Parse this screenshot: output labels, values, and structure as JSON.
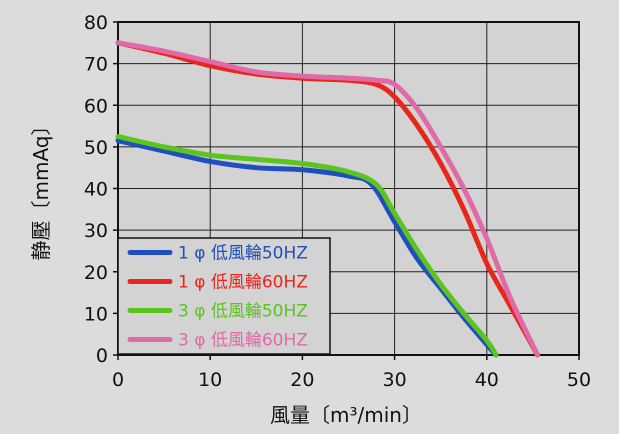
{
  "chart_data": {
    "type": "line",
    "title": "",
    "xlabel": "風量〔m³/min〕",
    "ylabel": "静壓〔mmAq〕",
    "xlim": [
      0,
      50
    ],
    "ylim": [
      0,
      80
    ],
    "xticks": [
      0,
      10,
      20,
      30,
      40,
      50
    ],
    "yticks": [
      0,
      10,
      20,
      30,
      40,
      50,
      60,
      70,
      80
    ],
    "grid": true,
    "legend": "bottom-left",
    "series": [
      {
        "name": "1 φ 低風輪50HZ",
        "color": "#1f4fbf",
        "x": [
          0,
          5,
          10,
          15,
          20,
          25,
          27.5,
          30,
          32.5,
          35,
          37.5,
          40,
          41
        ],
        "y": [
          51.5,
          49,
          46.5,
          45,
          44.5,
          43,
          41,
          32,
          23,
          16,
          9,
          2.5,
          0
        ]
      },
      {
        "name": "1 φ 低風輪60HZ",
        "color": "#e8261c",
        "x": [
          0,
          5,
          10,
          15,
          20,
          25,
          28,
          30,
          32.5,
          35,
          37.5,
          40,
          42.5,
          45.5
        ],
        "y": [
          75,
          72.5,
          69.5,
          67.5,
          66.5,
          66,
          65,
          62,
          55,
          46,
          35,
          22,
          12,
          0
        ]
      },
      {
        "name": "3 φ 低風輪50HZ",
        "color": "#5cc41f",
        "x": [
          0,
          5,
          10,
          15,
          20,
          25,
          28,
          30,
          32.5,
          35,
          37.5,
          40,
          41
        ],
        "y": [
          52.5,
          50,
          48,
          47,
          46,
          44,
          41,
          34,
          25,
          17,
          10,
          3.5,
          0
        ]
      },
      {
        "name": "3 φ 低風輪60HZ",
        "color": "#e06aa8",
        "x": [
          0,
          5,
          10,
          15,
          20,
          25,
          28,
          30,
          32.5,
          35,
          37.5,
          40,
          42.5,
          45.5
        ],
        "y": [
          75,
          73,
          70.5,
          68,
          67,
          66.5,
          66,
          65,
          59,
          50,
          40,
          28,
          14,
          0
        ]
      }
    ]
  }
}
